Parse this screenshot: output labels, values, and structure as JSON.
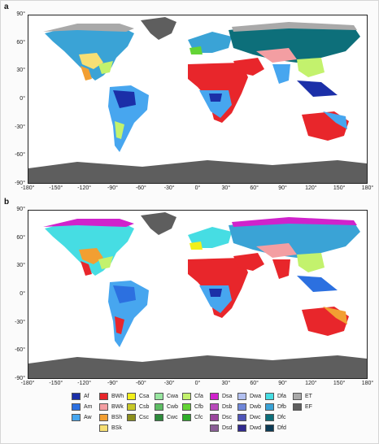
{
  "panels": [
    {
      "letter": "a",
      "title": ""
    },
    {
      "letter": "b",
      "title": ""
    }
  ],
  "axes": {
    "x_ticks": [
      "-180°",
      "-150°",
      "-120°",
      "-90°",
      "-60°",
      "-30°",
      "0°",
      "30°",
      "60°",
      "90°",
      "120°",
      "150°",
      "180°"
    ],
    "y_ticks": [
      "90°",
      "60°",
      "30°",
      "0°",
      "-30°",
      "-60°",
      "-90°"
    ]
  },
  "legend": [
    {
      "code": "Af",
      "color": "#1b2fa8"
    },
    {
      "code": "BWh",
      "color": "#e8262b"
    },
    {
      "code": "Csa",
      "color": "#f2ef1a"
    },
    {
      "code": "Cwa",
      "color": "#98e6a0"
    },
    {
      "code": "Cfa",
      "color": "#c3f26d"
    },
    {
      "code": "Dsa",
      "color": "#d022cc"
    },
    {
      "code": "Dwa",
      "color": "#b2c0f0"
    },
    {
      "code": "Dfa",
      "color": "#46dde3"
    },
    {
      "code": "ET",
      "color": "#a9a9a9"
    },
    {
      "code": "Am",
      "color": "#2c70e0"
    },
    {
      "code": "BWk",
      "color": "#f39ea2"
    },
    {
      "code": "Csb",
      "color": "#c7c826"
    },
    {
      "code": "Cwb",
      "color": "#5ebd64"
    },
    {
      "code": "Cfb",
      "color": "#63d436"
    },
    {
      "code": "Dsb",
      "color": "#b84bbb"
    },
    {
      "code": "Dwb",
      "color": "#6f86d9"
    },
    {
      "code": "Dfb",
      "color": "#3aa3d6"
    },
    {
      "code": "EF",
      "color": "#5e5e5e"
    },
    {
      "code": "Aw",
      "color": "#47a6ef"
    },
    {
      "code": "BSh",
      "color": "#f29f32"
    },
    {
      "code": "Csc",
      "color": "#8c8f1d"
    },
    {
      "code": "Cwc",
      "color": "#2e8b3c"
    },
    {
      "code": "Cfc",
      "color": "#2fad2a"
    },
    {
      "code": "Dsc",
      "color": "#9b489e"
    },
    {
      "code": "Dwc",
      "color": "#4f55b8"
    },
    {
      "code": "Dfc",
      "color": "#0d6f7a"
    },
    {
      "code": "BSk",
      "color": "#f7df74"
    },
    {
      "code": "Dsd",
      "color": "#8a5f96"
    },
    {
      "code": "Dwd",
      "color": "#312a8e"
    },
    {
      "code": "Dfd",
      "color": "#0c3b55"
    }
  ]
}
